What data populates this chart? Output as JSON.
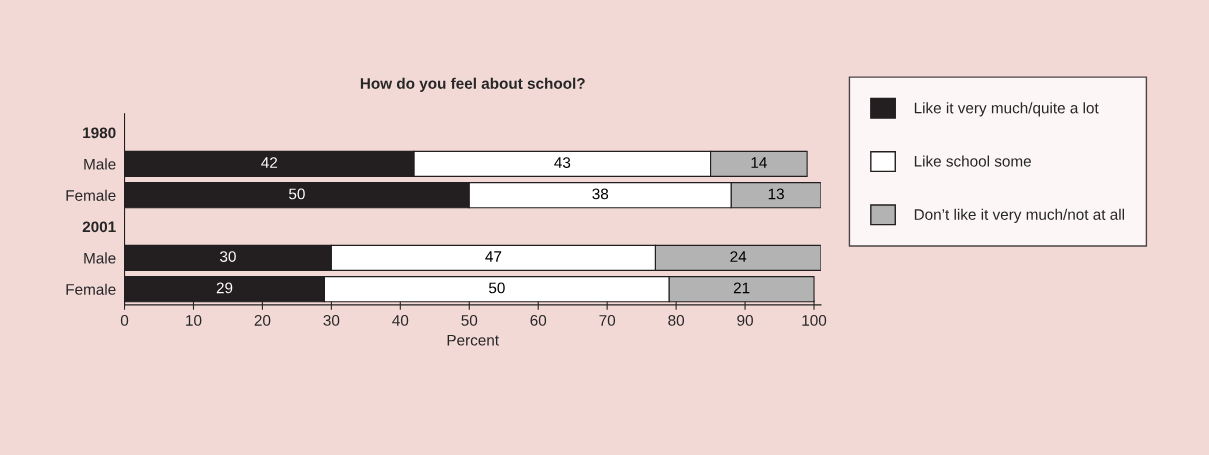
{
  "chart_data": {
    "type": "bar",
    "orientation": "horizontal",
    "stacked": true,
    "title": "How do you feel about school?",
    "xlabel": "Percent",
    "categories": [
      "1980",
      "Male",
      "Female",
      "2001",
      "Male",
      "Female"
    ],
    "series": [
      {
        "name": "Like it very much/quite a lot",
        "color": "#231f20",
        "values": [
          null,
          42,
          50,
          null,
          30,
          29
        ]
      },
      {
        "name": "Like school some",
        "color": "#ffffff",
        "values": [
          null,
          43,
          38,
          null,
          47,
          50
        ]
      },
      {
        "name": "Don’t like it very much/not at all",
        "color": "#b3b3b3",
        "values": [
          null,
          14,
          13,
          null,
          24,
          21
        ]
      }
    ],
    "xlim": [
      0,
      101
    ],
    "xticks": [
      0,
      10,
      20,
      30,
      40,
      50,
      60,
      70,
      80,
      90,
      100
    ],
    "data_labels": true,
    "grid": false,
    "legend": "right"
  }
}
